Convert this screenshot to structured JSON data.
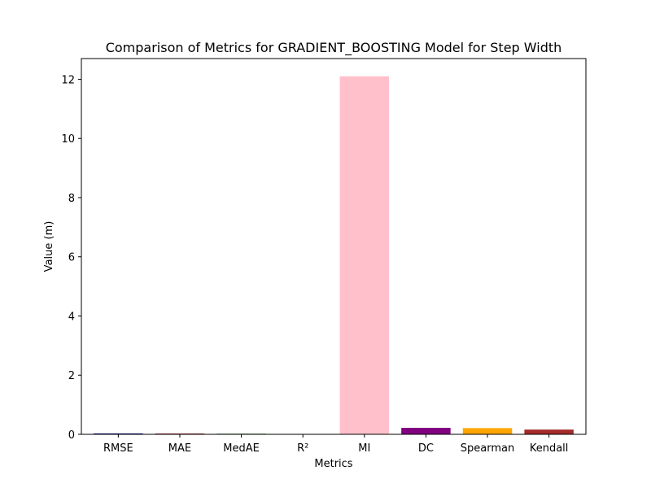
{
  "chart_data": {
    "type": "bar",
    "title": "Comparison of Metrics for GRADIENT_BOOSTING Model for Step Width",
    "xlabel": "Metrics",
    "ylabel": "Value (m)",
    "categories": [
      "RMSE",
      "MAE",
      "MedAE",
      "R²",
      "MI",
      "DC",
      "Spearman",
      "Kendall"
    ],
    "values": [
      0.03,
      0.025,
      0.02,
      0.01,
      12.1,
      0.22,
      0.21,
      0.16
    ],
    "colors": [
      "#000080",
      "#8b0000",
      "#006400",
      "#ffff00",
      "#ffc0cb",
      "#800080",
      "#ffa500",
      "#a52a2a"
    ],
    "yticks": [
      0,
      2,
      4,
      6,
      8,
      10,
      12
    ],
    "ylim": [
      0,
      12.7
    ],
    "grid": false,
    "legend": "none"
  }
}
